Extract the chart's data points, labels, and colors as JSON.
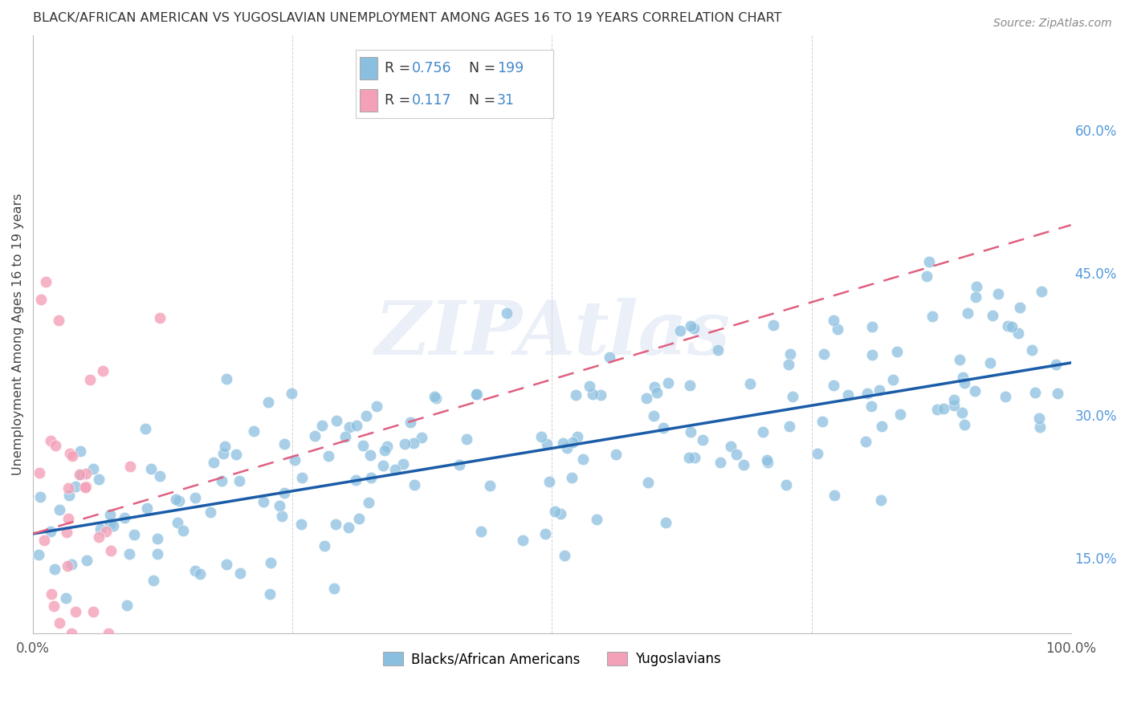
{
  "title": "BLACK/AFRICAN AMERICAN VS YUGOSLAVIAN UNEMPLOYMENT AMONG AGES 16 TO 19 YEARS CORRELATION CHART",
  "source": "Source: ZipAtlas.com",
  "ylabel": "Unemployment Among Ages 16 to 19 years",
  "watermark": "ZIPAtlas",
  "blue_label": "Blacks/African Americans",
  "pink_label": "Yugoslavians",
  "blue_R": 0.756,
  "blue_N": 199,
  "pink_R": 0.117,
  "pink_N": 31,
  "xlim": [
    0.0,
    1.0
  ],
  "ylim": [
    0.07,
    0.7
  ],
  "yticks_right": [
    0.15,
    0.3,
    0.45,
    0.6
  ],
  "ytick_right_labels": [
    "15.0%",
    "30.0%",
    "45.0%",
    "60.0%"
  ],
  "blue_color": "#8bbfe0",
  "pink_color": "#f4a0b8",
  "blue_line_color": "#1b5ca8",
  "pink_line_color": "#e06080",
  "background_color": "#ffffff",
  "grid_color": "#cccccc",
  "blue_seed": 42,
  "pink_seed": 99,
  "blue_line_x0": 0.0,
  "blue_line_y0": 0.175,
  "blue_line_x1": 1.0,
  "blue_line_y1": 0.355,
  "pink_line_x0": 0.0,
  "pink_line_y0": 0.175,
  "pink_line_x1": 1.0,
  "pink_line_y1": 0.5
}
